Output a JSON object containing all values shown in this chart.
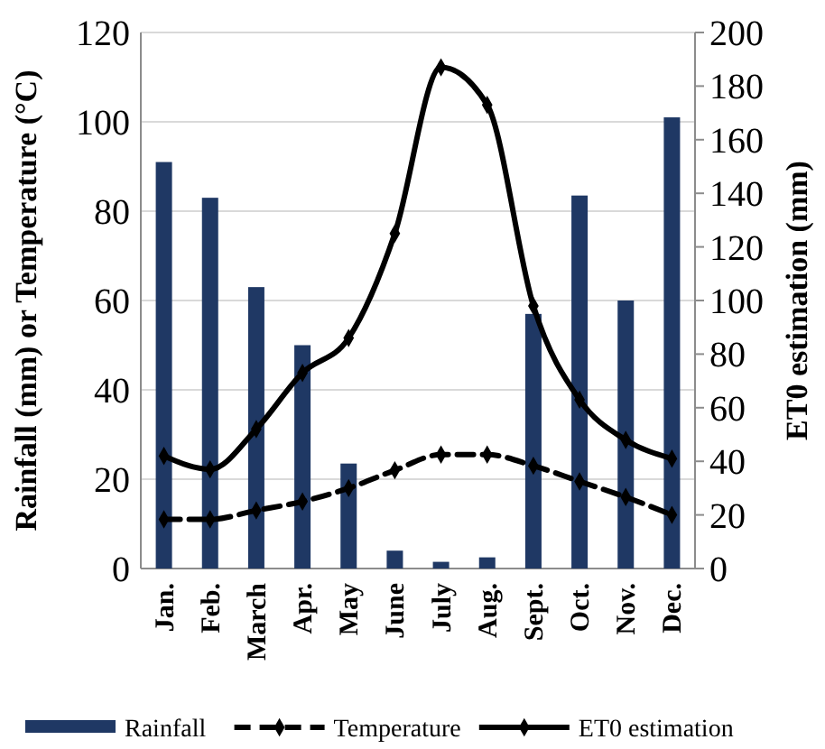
{
  "chart_data": {
    "type": "bar",
    "ylabel": "Rainfall (mm) or Temperature (°C)",
    "y2label": "ET0 estimation (mm)",
    "categories": [
      "Jan.",
      "Feb.",
      "March",
      "Apr.",
      "May",
      "June",
      "July",
      "Aug.",
      "Sept.",
      "Oct.",
      "Nov.",
      "Dec."
    ],
    "series": [
      {
        "name": "Rainfall",
        "color": "#1f3864",
        "values": [
          91,
          83,
          63,
          50,
          23.5,
          4,
          1.5,
          2.5,
          57,
          83.5,
          60,
          101
        ]
      },
      {
        "name": "Temperature",
        "type": "line",
        "color": "#000000",
        "line_style": "dashed",
        "marker": "diamond",
        "values": [
          11,
          11,
          13,
          15,
          18,
          22,
          25.5,
          25.5,
          23,
          19.5,
          16,
          12
        ]
      },
      {
        "name": "ET0 estimation",
        "type": "line",
        "axis": "y2",
        "color": "#000000",
        "line_style": "solid",
        "marker": "diamond",
        "values": [
          42,
          37,
          52,
          73,
          86,
          125,
          187,
          173,
          98,
          63,
          48,
          41
        ]
      }
    ],
    "ylim": [
      0,
      120
    ],
    "yticks": [
      0,
      20,
      40,
      60,
      80,
      100,
      120
    ],
    "y2lim": [
      0,
      200
    ],
    "y2ticks": [
      0,
      20,
      40,
      60,
      80,
      100,
      120,
      140,
      160,
      180,
      200
    ],
    "grid": "y",
    "legend": "bottom"
  }
}
